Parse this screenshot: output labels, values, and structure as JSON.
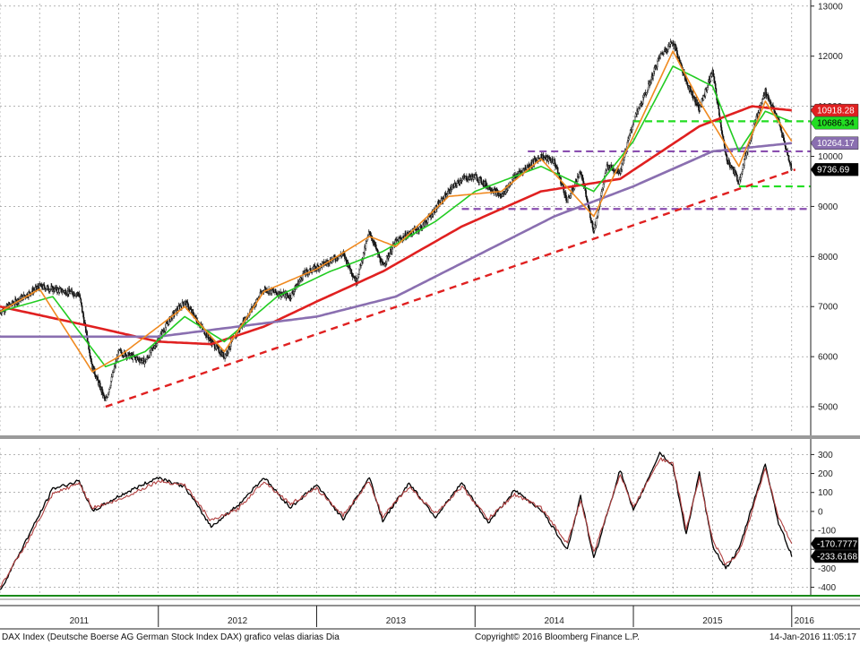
{
  "footer": {
    "left": "DAX Index (Deutsche Boerse AG German Stock Index DAX) grafico velas diarias  Dia",
    "center": "Copyright© 2016 Bloomberg Finance L.P.",
    "right": "14-Jan-2016 11:05:17"
  },
  "chart_data": [
    {
      "type": "candlestick",
      "panel": "price",
      "title": "",
      "x_labels": [
        "2011",
        "2012",
        "2013",
        "2014",
        "2015",
        "2016"
      ],
      "y_ticks": [
        5000,
        6000,
        7000,
        8000,
        9000,
        10000,
        11000,
        12000,
        13000
      ],
      "ylim": [
        4500,
        13050
      ],
      "grid": true,
      "price_path": [
        [
          "2011-01",
          6900
        ],
        [
          "2011-04",
          7400
        ],
        [
          "2011-07",
          7250
        ],
        [
          "2011-08",
          5800
        ],
        [
          "2011-09",
          5100
        ],
        [
          "2011-10",
          6100
        ],
        [
          "2011-12",
          5900
        ],
        [
          "2012-02",
          6800
        ],
        [
          "2012-03",
          7100
        ],
        [
          "2012-05",
          6300
        ],
        [
          "2012-06",
          6000
        ],
        [
          "2012-07",
          6500
        ],
        [
          "2012-09",
          7350
        ],
        [
          "2012-11",
          7200
        ],
        [
          "2012-12",
          7650
        ],
        [
          "2013-01",
          7780
        ],
        [
          "2013-03",
          8050
        ],
        [
          "2013-04",
          7500
        ],
        [
          "2013-05",
          8500
        ],
        [
          "2013-06",
          7800
        ],
        [
          "2013-07",
          8300
        ],
        [
          "2013-09",
          8600
        ],
        [
          "2013-11",
          9300
        ],
        [
          "2013-12",
          9550
        ],
        [
          "2014-01",
          9600
        ],
        [
          "2014-03",
          9200
        ],
        [
          "2014-04",
          9600
        ],
        [
          "2014-06",
          10000
        ],
        [
          "2014-07",
          9900
        ],
        [
          "2014-08",
          9100
        ],
        [
          "2014-09",
          9700
        ],
        [
          "2014-10",
          8500
        ],
        [
          "2014-11",
          9800
        ],
        [
          "2014-12",
          9700
        ],
        [
          "2015-01",
          10700
        ],
        [
          "2015-02",
          11300
        ],
        [
          "2015-03",
          12000
        ],
        [
          "2015-04",
          12300
        ],
        [
          "2015-05",
          11500
        ],
        [
          "2015-06",
          10950
        ],
        [
          "2015-07",
          11700
        ],
        [
          "2015-08",
          10000
        ],
        [
          "2015-09",
          9500
        ],
        [
          "2015-10",
          10500
        ],
        [
          "2015-11",
          11300
        ],
        [
          "2015-12",
          10700
        ],
        [
          "2016-01",
          9736
        ]
      ],
      "indicators": [
        {
          "color": "#e02020",
          "points": [
            [
              "2011-01",
              7000
            ],
            [
              "2011-08",
              6600
            ],
            [
              "2012-01",
              6300
            ],
            [
              "2012-05",
              6250
            ],
            [
              "2012-09",
              6600
            ],
            [
              "2013-01",
              7100
            ],
            [
              "2013-06",
              7700
            ],
            [
              "2013-12",
              8600
            ],
            [
              "2014-06",
              9300
            ],
            [
              "2014-12",
              9550
            ],
            [
              "2015-06",
              10600
            ],
            [
              "2015-10",
              11000
            ],
            [
              "2016-01",
              10918
            ]
          ]
        },
        {
          "color": "#8a6fb0",
          "points": [
            [
              "2011-01",
              6400
            ],
            [
              "2012-01",
              6400
            ],
            [
              "2012-07",
              6600
            ],
            [
              "2013-01",
              6800
            ],
            [
              "2013-07",
              7200
            ],
            [
              "2014-01",
              8000
            ],
            [
              "2014-07",
              8800
            ],
            [
              "2015-01",
              9400
            ],
            [
              "2015-07",
              10100
            ],
            [
              "2016-01",
              10264
            ]
          ]
        },
        {
          "color": "#22cc22",
          "points": [
            [
              "2011-01",
              6900
            ],
            [
              "2011-05",
              7200
            ],
            [
              "2011-09",
              5800
            ],
            [
              "2011-12",
              6100
            ],
            [
              "2012-03",
              6800
            ],
            [
              "2012-06",
              6300
            ],
            [
              "2012-10",
              7200
            ],
            [
              "2013-02",
              7700
            ],
            [
              "2013-06",
              8100
            ],
            [
              "2013-10",
              8700
            ],
            [
              "2014-01",
              9300
            ],
            [
              "2014-06",
              9800
            ],
            [
              "2014-10",
              9300
            ],
            [
              "2015-01",
              10300
            ],
            [
              "2015-04",
              11800
            ],
            [
              "2015-07",
              11400
            ],
            [
              "2015-09",
              10100
            ],
            [
              "2015-11",
              10900
            ],
            [
              "2016-01",
              10686
            ]
          ]
        },
        {
          "color": "#f08a20",
          "points": [
            [
              "2011-01",
              6900
            ],
            [
              "2011-04",
              7350
            ],
            [
              "2011-08",
              5700
            ],
            [
              "2011-10",
              6000
            ],
            [
              "2012-03",
              7000
            ],
            [
              "2012-06",
              6100
            ],
            [
              "2012-09",
              7300
            ],
            [
              "2013-01",
              7750
            ],
            [
              "2013-05",
              8400
            ],
            [
              "2013-07",
              8200
            ],
            [
              "2013-11",
              9200
            ],
            [
              "2014-03",
              9300
            ],
            [
              "2014-06",
              9950
            ],
            [
              "2014-10",
              8800
            ],
            [
              "2015-01",
              10400
            ],
            [
              "2015-04",
              12100
            ],
            [
              "2015-06",
              11100
            ],
            [
              "2015-09",
              9800
            ],
            [
              "2015-11",
              11100
            ],
            [
              "2016-01",
              10300
            ]
          ]
        }
      ],
      "level_lines": [
        {
          "color": "#8a4fb0",
          "dashed": true,
          "y": 10100,
          "from": "2014-05"
        },
        {
          "color": "#8a4fb0",
          "dashed": true,
          "y": 8950,
          "from": "2013-12"
        },
        {
          "color": "#22dd22",
          "dashed": true,
          "y": 10700,
          "from": "2015-01"
        },
        {
          "color": "#22dd22",
          "dashed": true,
          "y": 9400,
          "from": "2015-09"
        }
      ],
      "trendline": {
        "color": "#e02020",
        "dashed": true,
        "from": [
          "2011-09",
          5000
        ],
        "to": [
          "2016-01",
          9736
        ]
      },
      "value_labels": [
        {
          "text": "10918.28",
          "value": 10918.28,
          "bg": "#e02020",
          "fg": "#ffffff"
        },
        {
          "text": "10686.34",
          "value": 10686.34,
          "bg": "#22dd22",
          "fg": "#000000"
        },
        {
          "text": "10264.17",
          "value": 10264.17,
          "bg": "#8a6fb0",
          "fg": "#ffffff"
        },
        {
          "text": "9736.69",
          "value": 9736.69,
          "bg": "#000000",
          "fg": "#ffffff"
        }
      ]
    },
    {
      "type": "line",
      "panel": "oscillator",
      "title": "",
      "y_ticks": [
        300,
        200,
        100,
        0,
        -100,
        -200,
        -300,
        -400
      ],
      "ylim": [
        -440,
        335
      ],
      "grid": true,
      "series": [
        {
          "color": "#000000",
          "points": [
            [
              "2011-01",
              -420
            ],
            [
              "2011-03",
              -150
            ],
            [
              "2011-05",
              120
            ],
            [
              "2011-07",
              160
            ],
            [
              "2011-08",
              0
            ],
            [
              "2011-10",
              80
            ],
            [
              "2012-01",
              180
            ],
            [
              "2012-03",
              130
            ],
            [
              "2012-05",
              -80
            ],
            [
              "2012-07",
              30
            ],
            [
              "2012-09",
              180
            ],
            [
              "2012-11",
              20
            ],
            [
              "2013-01",
              140
            ],
            [
              "2013-03",
              -40
            ],
            [
              "2013-05",
              180
            ],
            [
              "2013-06",
              -50
            ],
            [
              "2013-08",
              150
            ],
            [
              "2013-10",
              -30
            ],
            [
              "2013-12",
              150
            ],
            [
              "2014-02",
              -60
            ],
            [
              "2014-04",
              110
            ],
            [
              "2014-06",
              10
            ],
            [
              "2014-08",
              -200
            ],
            [
              "2014-09",
              80
            ],
            [
              "2014-10",
              -250
            ],
            [
              "2014-12",
              220
            ],
            [
              "2015-01",
              0
            ],
            [
              "2015-03",
              310
            ],
            [
              "2015-04",
              240
            ],
            [
              "2015-05",
              -120
            ],
            [
              "2015-06",
              200
            ],
            [
              "2015-07",
              -180
            ],
            [
              "2015-08",
              -300
            ],
            [
              "2015-09",
              -200
            ],
            [
              "2015-11",
              250
            ],
            [
              "2015-12",
              -60
            ],
            [
              "2016-01",
              -233.6168
            ]
          ]
        },
        {
          "color": "#b04040",
          "points": [
            [
              "2011-01",
              -400
            ],
            [
              "2011-03",
              -170
            ],
            [
              "2011-05",
              90
            ],
            [
              "2011-07",
              150
            ],
            [
              "2011-08",
              20
            ],
            [
              "2011-10",
              60
            ],
            [
              "2012-01",
              160
            ],
            [
              "2012-03",
              140
            ],
            [
              "2012-05",
              -50
            ],
            [
              "2012-07",
              10
            ],
            [
              "2012-09",
              160
            ],
            [
              "2012-11",
              40
            ],
            [
              "2013-01",
              120
            ],
            [
              "2013-03",
              -20
            ],
            [
              "2013-05",
              160
            ],
            [
              "2013-06",
              -30
            ],
            [
              "2013-08",
              130
            ],
            [
              "2013-10",
              -10
            ],
            [
              "2013-12",
              130
            ],
            [
              "2014-02",
              -40
            ],
            [
              "2014-04",
              90
            ],
            [
              "2014-06",
              20
            ],
            [
              "2014-08",
              -170
            ],
            [
              "2014-09",
              60
            ],
            [
              "2014-10",
              -220
            ],
            [
              "2014-12",
              200
            ],
            [
              "2015-01",
              20
            ],
            [
              "2015-03",
              280
            ],
            [
              "2015-04",
              250
            ],
            [
              "2015-05",
              -90
            ],
            [
              "2015-06",
              180
            ],
            [
              "2015-07",
              -150
            ],
            [
              "2015-08",
              -280
            ],
            [
              "2015-09",
              -220
            ],
            [
              "2015-11",
              230
            ],
            [
              "2015-12",
              -30
            ],
            [
              "2016-01",
              -170.7777
            ]
          ]
        }
      ],
      "value_labels": [
        {
          "text": "-170.7777",
          "value": -170.7777,
          "bg": "#000000",
          "fg": "#ffffff"
        },
        {
          "text": "-233.6168",
          "value": -233.6168,
          "bg": "#000000",
          "fg": "#ffffff"
        }
      ]
    }
  ]
}
